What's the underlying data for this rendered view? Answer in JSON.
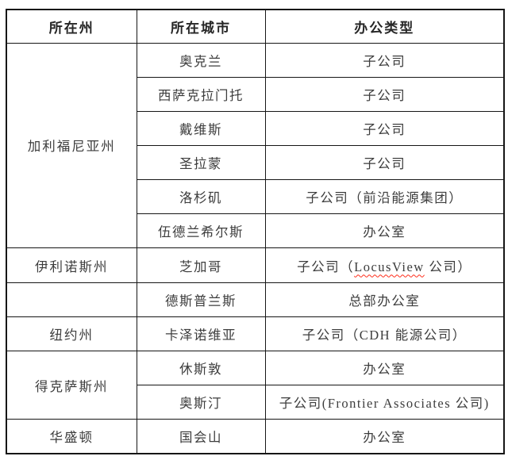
{
  "theme": {
    "background": "#ffffff",
    "border_color": "#161616",
    "header_text_color": "#262626",
    "body_text_color": "#3d3d3d",
    "spellcheck_underline_color": "#ff2d1a"
  },
  "table": {
    "headers": [
      "所在州",
      "所在城市",
      "办公类型"
    ],
    "groups": [
      {
        "state": "加利福尼亚州",
        "rows": [
          {
            "city": "奥克兰",
            "type": "子公司"
          },
          {
            "city": "西萨克拉门托",
            "type": "子公司"
          },
          {
            "city": "戴维斯",
            "type": "子公司"
          },
          {
            "city": "圣拉蒙",
            "type": "子公司"
          },
          {
            "city": "洛杉矶",
            "type": "子公司（前沿能源集团）"
          },
          {
            "city": "伍德兰希尔斯",
            "type": "办公室"
          }
        ]
      },
      {
        "state": "伊利诺斯州",
        "rows": [
          {
            "city": "芝加哥",
            "type": "子公司（LocusView 公司）",
            "misspelled": "LocusView"
          }
        ]
      },
      {
        "state": "",
        "rows": [
          {
            "city": "德斯普兰斯",
            "type": "总部办公室"
          }
        ]
      },
      {
        "state": "纽约州",
        "rows": [
          {
            "city": "卡泽诺维亚",
            "type": "子公司（CDH 能源公司）"
          }
        ]
      },
      {
        "state": "得克萨斯州",
        "rows": [
          {
            "city": "休斯敦",
            "type": "办公室"
          },
          {
            "city": "奥斯汀",
            "type": "子公司(Frontier Associates 公司)"
          }
        ]
      },
      {
        "state": "华盛顿",
        "rows": [
          {
            "city": "国会山",
            "type": "办公室"
          }
        ]
      }
    ]
  }
}
